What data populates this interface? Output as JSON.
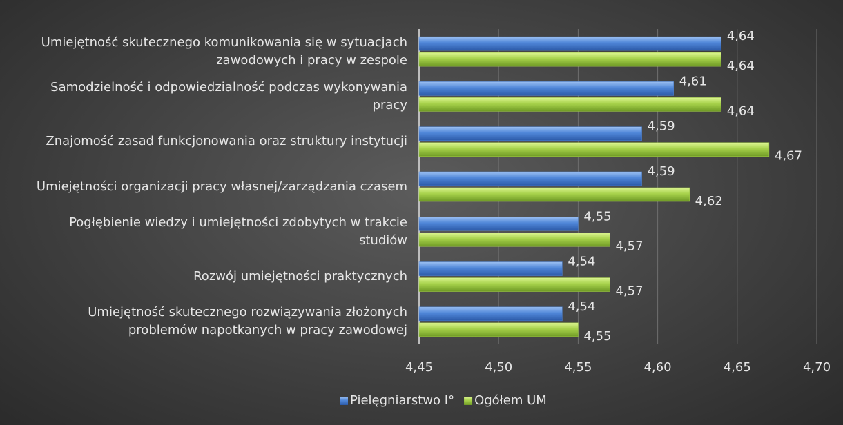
{
  "chart_data": {
    "type": "hbar",
    "categories": [
      "Umiejętność skutecznego komunikowania się w sytuacjach zawodowych i pracy w zespole",
      "Samodzielność i odpowiedzialność podczas wykonywania pracy",
      "Znajomość zasad funkcjonowania oraz struktury instytucji",
      "Umiejętności organizacji pracy własnej/zarządzania czasem",
      "Pogłębienie wiedzy i umiejętności zdobytych w trakcie studiów",
      "Rozwój umiejętności praktycznych",
      "Umiejętność skutecznego rozwiązywania złożonych problemów napotkanych w pracy zawodowej"
    ],
    "series": [
      {
        "name": "Pielęgniarstwo I°",
        "color": "#4f86d8",
        "values": [
          4.64,
          4.61,
          4.59,
          4.59,
          4.55,
          4.54,
          4.54
        ],
        "value_labels": [
          "4,64",
          "4,61",
          "4,59",
          "4,59",
          "4,55",
          "4,54",
          "4,54"
        ]
      },
      {
        "name": "Ogółem UM",
        "color": "#a6d14a",
        "values": [
          4.64,
          4.64,
          4.67,
          4.62,
          4.57,
          4.57,
          4.55
        ],
        "value_labels": [
          "4,64",
          "4,64",
          "4,67",
          "4,62",
          "4,57",
          "4,57",
          "4,55"
        ]
      }
    ],
    "xlim": [
      4.45,
      4.7
    ],
    "xticks": [
      {
        "value": 4.45,
        "label": "4,45"
      },
      {
        "value": 4.5,
        "label": "4,50"
      },
      {
        "value": 4.55,
        "label": "4,55"
      },
      {
        "value": 4.6,
        "label": "4,60"
      },
      {
        "value": 4.65,
        "label": "4,65"
      },
      {
        "value": 4.7,
        "label": "4,70"
      }
    ],
    "grid": true,
    "legend": "bottom"
  }
}
